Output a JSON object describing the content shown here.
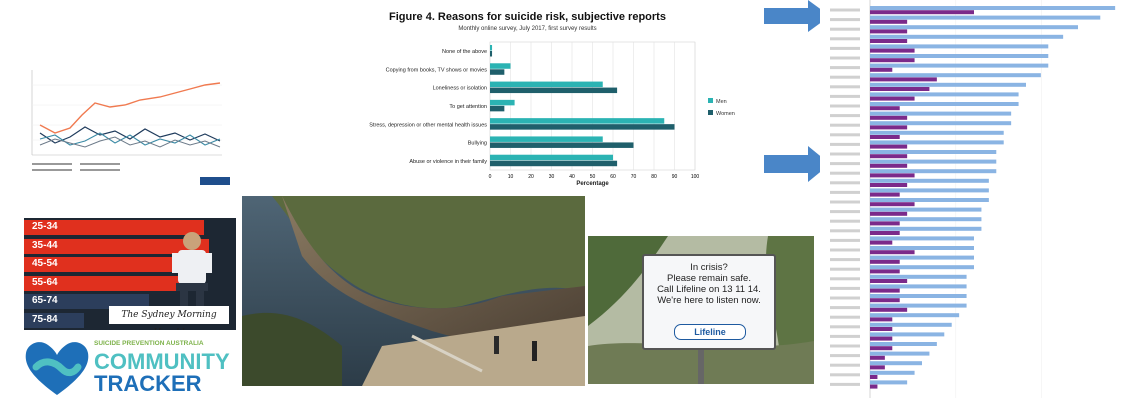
{
  "figure4": {
    "title": "Figure 4. Reasons for suicide risk, subjective reports",
    "subtitle": "Monthly online survey, July 2017, first survey results",
    "legend": [
      "Men",
      "Women"
    ],
    "colors": {
      "men": "#2bb3b3",
      "women": "#1f5f6b"
    },
    "chart_data": {
      "type": "bar",
      "orientation": "horizontal",
      "title": "Figure 4. Reasons for suicide risk, subjective reports",
      "xlabel": "Percentage",
      "xlim": [
        0,
        100
      ],
      "xticks": [
        "0",
        "10",
        "20",
        "30",
        "40",
        "50",
        "60",
        "70",
        "80",
        "90",
        "100"
      ],
      "categories": [
        "None of the above",
        "Copying from books, TV shows or movies",
        "Loneliness or isolation",
        "To get attention",
        "Stress, depression or other mental health issues",
        "Bullying",
        "Abuse or violence in their family"
      ],
      "series": [
        {
          "name": "Men",
          "values": [
            1,
            10,
            55,
            12,
            85,
            55,
            60
          ]
        },
        {
          "name": "Women",
          "values": [
            1,
            7,
            62,
            7,
            90,
            70,
            62
          ]
        }
      ]
    }
  },
  "age_groups": [
    "25-34",
    "35-44",
    "45-54",
    "55-64",
    "65-74",
    "75-84"
  ],
  "smh_masthead": "The Sydney Morning Herald",
  "tracker": {
    "line1": "SUICIDE PREVENTION AUSTRALIA",
    "line2": "COMMUNITY",
    "line3": "TRACKER"
  },
  "sign": {
    "text": [
      "In crisis?",
      "Please remain safe.",
      "Call Lifeline on 13 11 14.",
      "We're here to listen now."
    ],
    "brand": "Lifeline"
  },
  "ranking_chart": {
    "colors": {
      "a": "#8ab4e3",
      "b": "#7b2a8a"
    },
    "chart_data": {
      "type": "bar",
      "orientation": "horizontal",
      "series": [
        {
          "name": "",
          "values": [
            33,
            31,
            28,
            26,
            24,
            24,
            24,
            23,
            21,
            20,
            20,
            19,
            19,
            18,
            18,
            17,
            17,
            17,
            16,
            16,
            16,
            15,
            15,
            15,
            14,
            14,
            14,
            14,
            13,
            13,
            13,
            13,
            12,
            11,
            10,
            9,
            8,
            7,
            6,
            5
          ]
        },
        {
          "name": "",
          "values": [
            14,
            5,
            5,
            5,
            6,
            6,
            3,
            9,
            8,
            6,
            4,
            5,
            5,
            4,
            5,
            5,
            5,
            6,
            5,
            4,
            6,
            5,
            4,
            4,
            3,
            6,
            4,
            4,
            5,
            4,
            4,
            5,
            3,
            3,
            3,
            3,
            2,
            2,
            1,
            1
          ]
        }
      ]
    }
  }
}
